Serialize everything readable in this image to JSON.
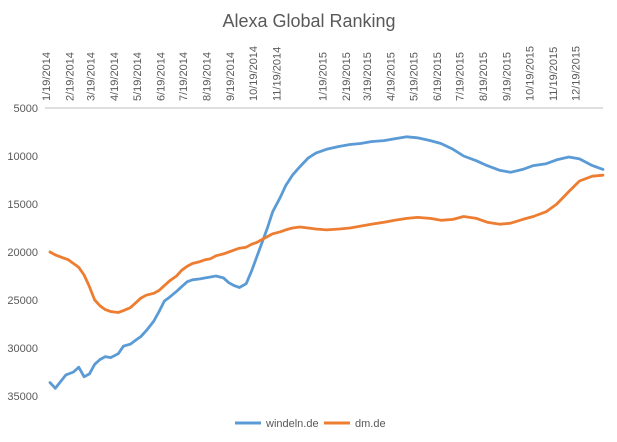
{
  "chart_data": {
    "type": "line",
    "title": "Alexa Global Ranking",
    "xlabel": "",
    "ylabel": "",
    "x_tick_labels": [
      "1/19/2014",
      "2/19/2014",
      "3/19/2014",
      "4/19/2014",
      "5/19/2014",
      "6/19/2014",
      "7/19/2014",
      "8/19/2014",
      "9/19/2014",
      "10/19/2014",
      "11/19/2014",
      "1/19/2015",
      "2/19/2015",
      "3/19/2015",
      "4/19/2015",
      "5/19/2015",
      "6/19/2015",
      "7/19/2015",
      "8/19/2015",
      "9/19/2015",
      "10/19/2015",
      "11/19/2015",
      "12/19/2015"
    ],
    "y_ticks": [
      5000,
      10000,
      15000,
      20000,
      25000,
      30000,
      35000
    ],
    "ylim": [
      5000,
      35000
    ],
    "y_reversed": true,
    "grid": false,
    "legend_position": "bottom",
    "series": [
      {
        "name": "windeln.de",
        "color": "#5B9BD5",
        "points": [
          [
            "1/19/2014",
            33600
          ],
          [
            "1/26/2014",
            34200
          ],
          [
            "2/2/2014",
            33500
          ],
          [
            "2/9/2014",
            32800
          ],
          [
            "2/19/2014",
            32500
          ],
          [
            "2/26/2014",
            32000
          ],
          [
            "3/5/2014",
            33000
          ],
          [
            "3/12/2014",
            32700
          ],
          [
            "3/19/2014",
            31700
          ],
          [
            "3/26/2014",
            31200
          ],
          [
            "4/2/2014",
            30900
          ],
          [
            "4/9/2014",
            31000
          ],
          [
            "4/19/2014",
            30600
          ],
          [
            "4/26/2014",
            29800
          ],
          [
            "5/5/2014",
            29600
          ],
          [
            "5/12/2014",
            29200
          ],
          [
            "5/19/2014",
            28800
          ],
          [
            "5/26/2014",
            28200
          ],
          [
            "6/5/2014",
            27200
          ],
          [
            "6/12/2014",
            26200
          ],
          [
            "6/19/2014",
            25100
          ],
          [
            "6/26/2014",
            24700
          ],
          [
            "7/5/2014",
            24100
          ],
          [
            "7/12/2014",
            23600
          ],
          [
            "7/19/2014",
            23100
          ],
          [
            "7/26/2014",
            22900
          ],
          [
            "8/5/2014",
            22800
          ],
          [
            "8/12/2014",
            22700
          ],
          [
            "8/19/2014",
            22600
          ],
          [
            "8/26/2014",
            22500
          ],
          [
            "9/5/2014",
            22700
          ],
          [
            "9/12/2014",
            23200
          ],
          [
            "9/19/2014",
            23500
          ],
          [
            "9/26/2014",
            23700
          ],
          [
            "10/5/2014",
            23300
          ],
          [
            "10/12/2014",
            22000
          ],
          [
            "10/19/2014",
            20500
          ],
          [
            "10/26/2014",
            19000
          ],
          [
            "11/2/2014",
            17500
          ],
          [
            "11/9/2014",
            15800
          ],
          [
            "11/19/2014",
            14300
          ],
          [
            "11/26/2014",
            13100
          ],
          [
            "12/5/2014",
            12000
          ],
          [
            "12/15/2014",
            11100
          ],
          [
            "12/26/2014",
            10200
          ],
          [
            "1/5/2015",
            9700
          ],
          [
            "1/19/2015",
            9300
          ],
          [
            "2/5/2015",
            9000
          ],
          [
            "2/19/2015",
            8800
          ],
          [
            "3/5/2015",
            8700
          ],
          [
            "3/19/2015",
            8500
          ],
          [
            "4/5/2015",
            8400
          ],
          [
            "4/19/2015",
            8200
          ],
          [
            "5/5/2015",
            8000
          ],
          [
            "5/19/2015",
            8100
          ],
          [
            "6/5/2015",
            8400
          ],
          [
            "6/19/2015",
            8700
          ],
          [
            "7/5/2015",
            9300
          ],
          [
            "7/19/2015",
            10000
          ],
          [
            "8/5/2015",
            10500
          ],
          [
            "8/19/2015",
            11000
          ],
          [
            "9/5/2015",
            11500
          ],
          [
            "9/19/2015",
            11700
          ],
          [
            "10/5/2015",
            11400
          ],
          [
            "10/19/2015",
            11000
          ],
          [
            "11/5/2015",
            10800
          ],
          [
            "11/19/2015",
            10400
          ],
          [
            "12/5/2015",
            10100
          ],
          [
            "12/19/2015",
            10300
          ],
          [
            "1/5/2016",
            11000
          ],
          [
            "1/19/2016",
            11400
          ]
        ]
      },
      {
        "name": "dm.de",
        "color": "#ED7D31",
        "points": [
          [
            "1/19/2014",
            20000
          ],
          [
            "1/26/2014",
            20300
          ],
          [
            "2/5/2014",
            20600
          ],
          [
            "2/12/2014",
            20800
          ],
          [
            "2/19/2014",
            21200
          ],
          [
            "2/26/2014",
            21600
          ],
          [
            "3/5/2014",
            22400
          ],
          [
            "3/12/2014",
            23600
          ],
          [
            "3/19/2014",
            25000
          ],
          [
            "3/26/2014",
            25600
          ],
          [
            "4/2/2014",
            26000
          ],
          [
            "4/9/2014",
            26200
          ],
          [
            "4/19/2014",
            26300
          ],
          [
            "4/26/2014",
            26100
          ],
          [
            "5/5/2014",
            25800
          ],
          [
            "5/12/2014",
            25300
          ],
          [
            "5/19/2014",
            24800
          ],
          [
            "5/26/2014",
            24500
          ],
          [
            "6/5/2014",
            24300
          ],
          [
            "6/12/2014",
            24000
          ],
          [
            "6/19/2014",
            23500
          ],
          [
            "6/26/2014",
            23000
          ],
          [
            "7/5/2014",
            22500
          ],
          [
            "7/12/2014",
            21900
          ],
          [
            "7/19/2014",
            21500
          ],
          [
            "7/26/2014",
            21200
          ],
          [
            "8/5/2014",
            21000
          ],
          [
            "8/12/2014",
            20800
          ],
          [
            "8/19/2014",
            20700
          ],
          [
            "8/26/2014",
            20400
          ],
          [
            "9/5/2014",
            20200
          ],
          [
            "9/12/2014",
            20000
          ],
          [
            "9/19/2014",
            19800
          ],
          [
            "9/26/2014",
            19600
          ],
          [
            "10/5/2014",
            19500
          ],
          [
            "10/12/2014",
            19200
          ],
          [
            "10/19/2014",
            19000
          ],
          [
            "10/26/2014",
            18700
          ],
          [
            "11/2/2014",
            18400
          ],
          [
            "11/9/2014",
            18100
          ],
          [
            "11/19/2014",
            17900
          ],
          [
            "11/26/2014",
            17700
          ],
          [
            "12/5/2014",
            17500
          ],
          [
            "12/15/2014",
            17400
          ],
          [
            "12/26/2014",
            17500
          ],
          [
            "1/5/2015",
            17600
          ],
          [
            "1/19/2015",
            17700
          ],
          [
            "2/5/2015",
            17600
          ],
          [
            "2/19/2015",
            17500
          ],
          [
            "3/5/2015",
            17300
          ],
          [
            "3/19/2015",
            17100
          ],
          [
            "4/5/2015",
            16900
          ],
          [
            "4/19/2015",
            16700
          ],
          [
            "5/5/2015",
            16500
          ],
          [
            "5/19/2015",
            16400
          ],
          [
            "6/5/2015",
            16500
          ],
          [
            "6/19/2015",
            16700
          ],
          [
            "7/5/2015",
            16600
          ],
          [
            "7/19/2015",
            16300
          ],
          [
            "8/5/2015",
            16500
          ],
          [
            "8/19/2015",
            16900
          ],
          [
            "9/5/2015",
            17100
          ],
          [
            "9/19/2015",
            17000
          ],
          [
            "10/5/2015",
            16600
          ],
          [
            "10/19/2015",
            16300
          ],
          [
            "11/5/2015",
            15800
          ],
          [
            "11/19/2015",
            15000
          ],
          [
            "12/5/2015",
            13700
          ],
          [
            "12/19/2015",
            12600
          ],
          [
            "1/5/2016",
            12100
          ],
          [
            "1/19/2016",
            12000
          ]
        ]
      }
    ]
  }
}
